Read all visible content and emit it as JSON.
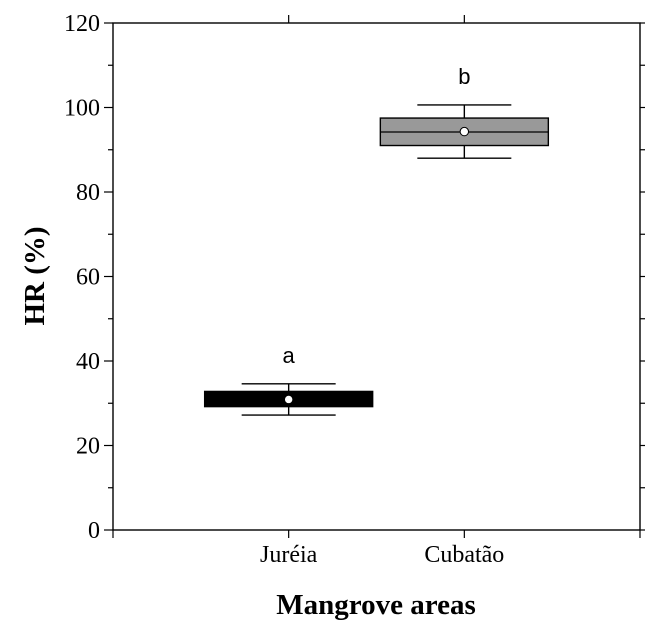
{
  "chart_data": {
    "type": "box",
    "title": "",
    "xlabel": "Mangrove areas",
    "ylabel": "HR (%)",
    "ylim": [
      0,
      120
    ],
    "yticks": [
      0,
      20,
      40,
      60,
      80,
      100,
      120
    ],
    "y_minor_step": 10,
    "grid": false,
    "categories": [
      "Juréia",
      "Cubatão"
    ],
    "boxes": [
      {
        "category": "Juréia",
        "whisker_low": 27.2,
        "q1": 29.2,
        "median": 30.8,
        "q3": 32.8,
        "whisker_high": 34.6,
        "mean": 30.9,
        "fill": "#000000",
        "significance": "a"
      },
      {
        "category": "Cubatão",
        "whisker_low": 88.0,
        "q1": 91.0,
        "median": 94.2,
        "q3": 97.5,
        "whisker_high": 100.6,
        "mean": 94.3,
        "fill": "#999999",
        "significance": "b"
      }
    ]
  }
}
